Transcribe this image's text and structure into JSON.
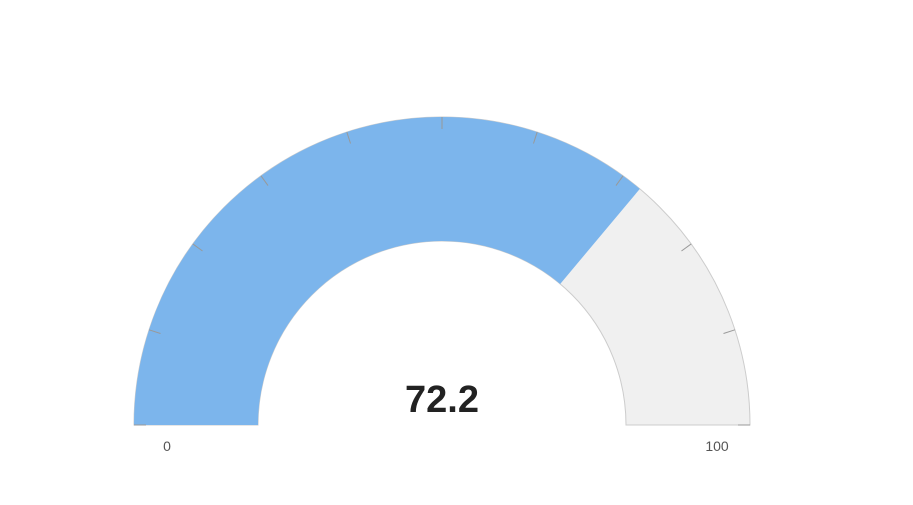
{
  "chart_data": {
    "type": "gauge",
    "value": 72.2,
    "value_label": "72.2",
    "min": 0,
    "max": 100,
    "min_label": "0",
    "max_label": "100",
    "title": "",
    "colors": {
      "band": "#7cb5ec",
      "track": "#f0f0f0",
      "outline": "#cccccc",
      "tick": "#999999",
      "value_text": "#222222",
      "axis_text": "#555555"
    }
  }
}
